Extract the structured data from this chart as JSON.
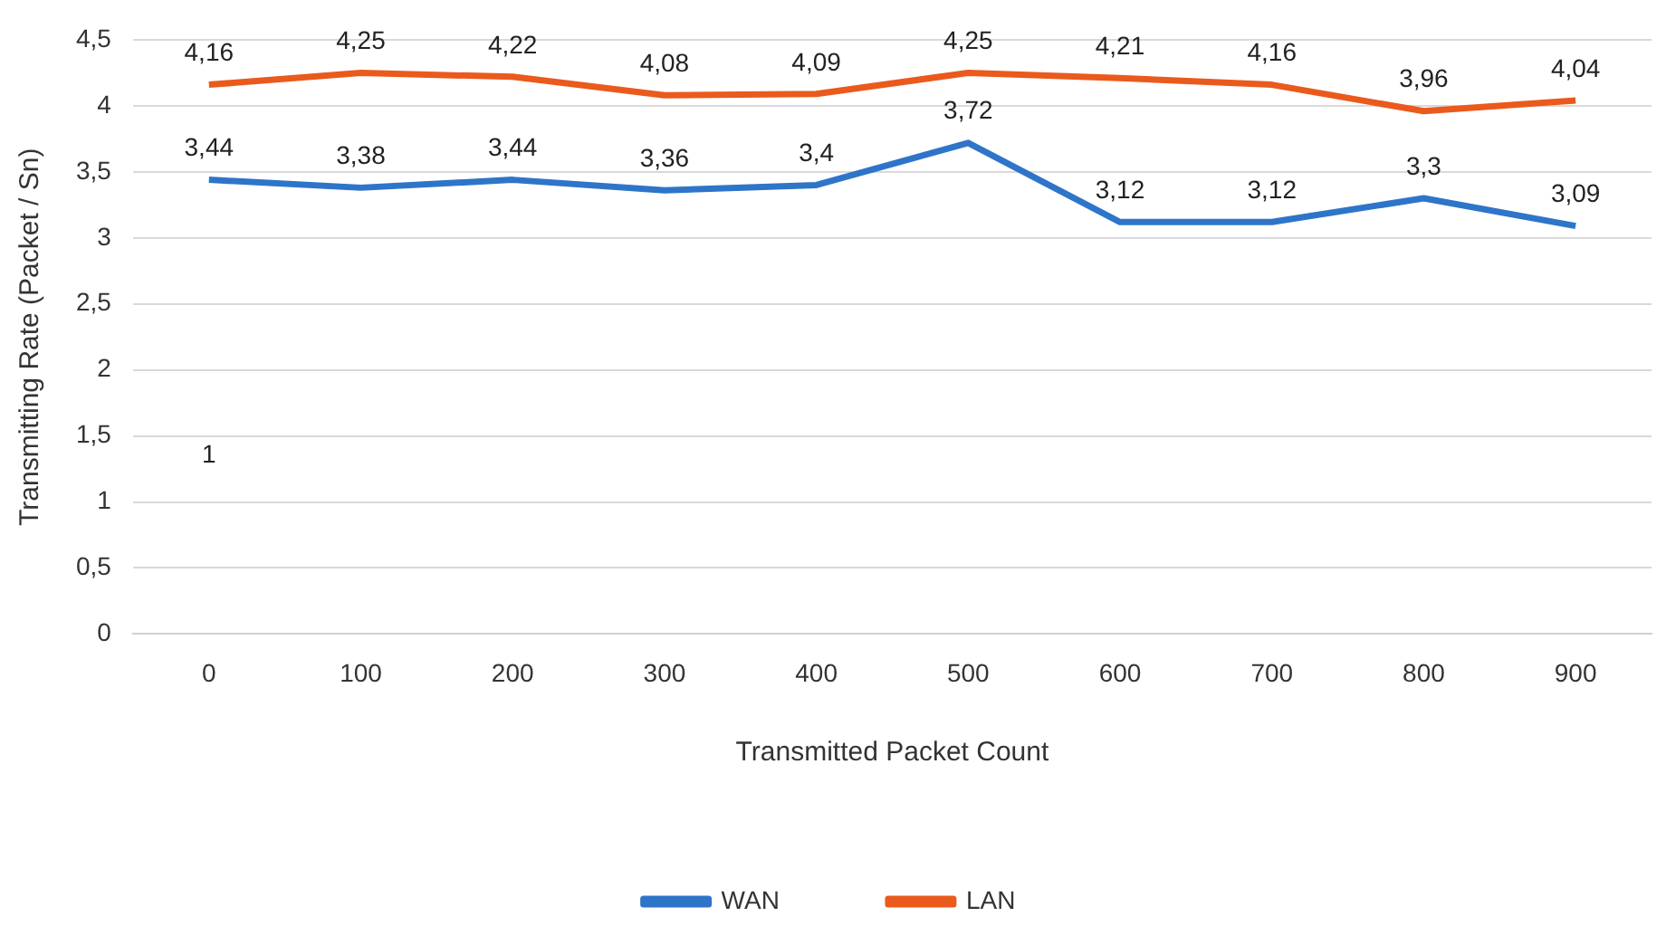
{
  "chart_data": {
    "type": "line",
    "xlabel": "Transmitted Packet Count",
    "ylabel": "Transmitting Rate (Packet / Sn)",
    "categories": [
      "0",
      "100",
      "200",
      "300",
      "400",
      "500",
      "600",
      "700",
      "800",
      "900"
    ],
    "series": [
      {
        "name": "WAN",
        "color": "#2e75c9",
        "values": [
          3.44,
          3.38,
          3.44,
          3.36,
          3.4,
          3.72,
          3.12,
          3.12,
          3.3,
          3.09
        ],
        "value_labels": [
          "3,44",
          "3,38",
          "3,44",
          "3,36",
          "3,4",
          "3,72",
          "3,12",
          "3,12",
          "3,3",
          "3,09"
        ]
      },
      {
        "name": "LAN",
        "color": "#ea5a1c",
        "values": [
          4.16,
          4.25,
          4.22,
          4.08,
          4.09,
          4.25,
          4.21,
          4.16,
          3.96,
          4.04
        ],
        "value_labels": [
          "4,16",
          "4,25",
          "4,22",
          "4,08",
          "4,09",
          "4,25",
          "4,21",
          "4,16",
          "3,96",
          "4,04"
        ]
      }
    ],
    "ylim": [
      0,
      4.5
    ],
    "yticks": [
      0,
      {
        "value": 0.5,
        "label": "0,5"
      },
      1,
      {
        "value": 1.5,
        "label": "1,5"
      },
      2,
      {
        "value": 2.5,
        "label": "2,5"
      },
      3,
      {
        "value": 3.5,
        "label": "3,5"
      },
      4,
      {
        "value": 4.5,
        "label": "4,5"
      }
    ],
    "annotations": [
      "1"
    ],
    "grid": "y",
    "legend": "bottom",
    "marker": "none",
    "line_style": "solid"
  }
}
